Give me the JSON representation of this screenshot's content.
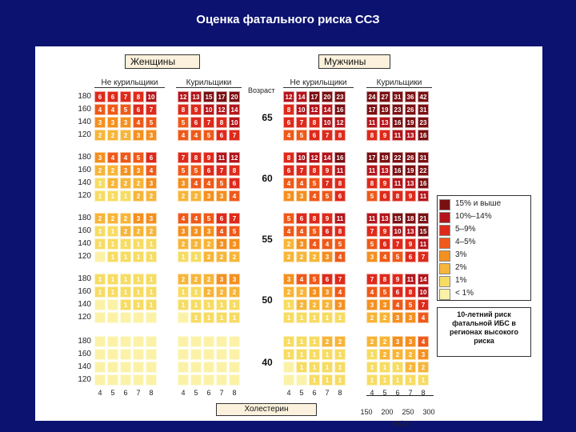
{
  "title": "Оценка фатального риска ССЗ",
  "chart_data": {
    "type": "heatmap",
    "title": "Оценка фатального риска ССЗ",
    "sexes": [
      "Женщины",
      "Мужчины"
    ],
    "smoking_labels": [
      "Не курильщики",
      "Курильщики"
    ],
    "age_axis_label": "Возраст",
    "ages": [
      65,
      60,
      55,
      50,
      40
    ],
    "systolic_bp": [
      180,
      160,
      140,
      120
    ],
    "cholesterol_mmol": [
      "4",
      "5",
      "6",
      "7",
      "8"
    ],
    "cholesterol_label": "Холестерин",
    "cholesterol_mgdl_ticks": [
      "150",
      "200",
      "250",
      "300"
    ],
    "cholesterol_mgdl_unit": "мг/дл",
    "blocks": {
      "65": {
        "women_nonsmokers": [
          [
            6,
            6,
            7,
            8,
            10
          ],
          [
            4,
            4,
            5,
            6,
            7
          ],
          [
            3,
            3,
            3,
            4,
            5
          ],
          [
            2,
            2,
            2,
            3,
            3
          ]
        ],
        "women_smokers": [
          [
            12,
            13,
            15,
            17,
            20
          ],
          [
            8,
            9,
            10,
            12,
            14
          ],
          [
            5,
            6,
            7,
            8,
            10
          ],
          [
            4,
            4,
            5,
            6,
            7
          ]
        ],
        "men_nonsmokers": [
          [
            12,
            14,
            17,
            20,
            23
          ],
          [
            8,
            10,
            12,
            14,
            16
          ],
          [
            6,
            7,
            8,
            10,
            12
          ],
          [
            4,
            5,
            6,
            7,
            8
          ]
        ],
        "men_smokers": [
          [
            24,
            27,
            31,
            36,
            42
          ],
          [
            17,
            19,
            23,
            26,
            31
          ],
          [
            11,
            13,
            16,
            19,
            23
          ],
          [
            8,
            9,
            11,
            13,
            16
          ]
        ]
      },
      "60": {
        "women_nonsmokers": [
          [
            3,
            4,
            4,
            5,
            6
          ],
          [
            2,
            2,
            3,
            3,
            4
          ],
          [
            1,
            2,
            2,
            2,
            3
          ],
          [
            1,
            1,
            1,
            2,
            2
          ]
        ],
        "women_smokers": [
          [
            7,
            8,
            9,
            11,
            12
          ],
          [
            5,
            5,
            6,
            7,
            8
          ],
          [
            3,
            4,
            4,
            5,
            6
          ],
          [
            2,
            2,
            3,
            3,
            4
          ]
        ],
        "men_nonsmokers": [
          [
            8,
            10,
            12,
            14,
            16
          ],
          [
            6,
            7,
            8,
            9,
            11
          ],
          [
            4,
            4,
            5,
            7,
            8
          ],
          [
            3,
            3,
            4,
            5,
            6
          ]
        ],
        "men_smokers": [
          [
            17,
            19,
            22,
            26,
            31
          ],
          [
            11,
            13,
            16,
            19,
            22
          ],
          [
            8,
            9,
            11,
            13,
            16
          ],
          [
            5,
            6,
            8,
            9,
            11
          ]
        ]
      },
      "55": {
        "women_nonsmokers": [
          [
            2,
            2,
            2,
            3,
            3
          ],
          [
            1,
            1,
            2,
            2,
            2
          ],
          [
            1,
            1,
            1,
            1,
            1
          ],
          [
            0,
            1,
            1,
            1,
            1
          ]
        ],
        "women_smokers": [
          [
            4,
            4,
            5,
            6,
            7
          ],
          [
            3,
            3,
            3,
            4,
            5
          ],
          [
            2,
            2,
            2,
            3,
            3
          ],
          [
            1,
            1,
            2,
            2,
            2
          ]
        ],
        "men_nonsmokers": [
          [
            5,
            6,
            8,
            9,
            11
          ],
          [
            4,
            4,
            5,
            6,
            8
          ],
          [
            2,
            3,
            4,
            4,
            5
          ],
          [
            2,
            2,
            2,
            3,
            4
          ]
        ],
        "men_smokers": [
          [
            11,
            13,
            15,
            18,
            21
          ],
          [
            7,
            9,
            10,
            13,
            15
          ],
          [
            5,
            6,
            7,
            9,
            11
          ],
          [
            3,
            4,
            5,
            6,
            7
          ]
        ]
      },
      "50": {
        "women_nonsmokers": [
          [
            1,
            1,
            1,
            1,
            1
          ],
          [
            1,
            1,
            1,
            1,
            1
          ],
          [
            0,
            0,
            1,
            1,
            1
          ],
          [
            0,
            0,
            0,
            0,
            0
          ]
        ],
        "women_smokers": [
          [
            2,
            2,
            2,
            3,
            3
          ],
          [
            1,
            1,
            2,
            2,
            2
          ],
          [
            1,
            1,
            1,
            1,
            1
          ],
          [
            0,
            1,
            1,
            1,
            1
          ]
        ],
        "men_nonsmokers": [
          [
            3,
            4,
            5,
            6,
            7
          ],
          [
            2,
            2,
            3,
            3,
            4
          ],
          [
            1,
            2,
            2,
            2,
            3
          ],
          [
            1,
            1,
            1,
            1,
            1
          ]
        ],
        "men_smokers": [
          [
            7,
            8,
            9,
            11,
            14
          ],
          [
            4,
            5,
            6,
            8,
            10
          ],
          [
            3,
            3,
            4,
            5,
            7
          ],
          [
            2,
            2,
            3,
            3,
            4
          ]
        ]
      },
      "40": {
        "women_nonsmokers": [
          [
            0,
            0,
            0,
            0,
            0
          ],
          [
            0,
            0,
            0,
            0,
            0
          ],
          [
            0,
            0,
            0,
            0,
            0
          ],
          [
            0,
            0,
            0,
            0,
            0
          ]
        ],
        "women_smokers": [
          [
            0,
            0,
            0,
            0,
            0
          ],
          [
            0,
            0,
            0,
            0,
            0
          ],
          [
            0,
            0,
            0,
            0,
            0
          ],
          [
            0,
            0,
            0,
            0,
            0
          ]
        ],
        "men_nonsmokers": [
          [
            1,
            1,
            1,
            2,
            2
          ],
          [
            1,
            1,
            1,
            1,
            1
          ],
          [
            0,
            1,
            1,
            1,
            1
          ],
          [
            0,
            0,
            1,
            1,
            1
          ]
        ],
        "men_smokers": [
          [
            2,
            2,
            3,
            3,
            4
          ],
          [
            1,
            2,
            2,
            2,
            3
          ],
          [
            1,
            1,
            1,
            2,
            2
          ],
          [
            1,
            1,
            1,
            1,
            1
          ]
        ]
      }
    },
    "legend": [
      {
        "label": "15% и выше",
        "color": "#7a0f12"
      },
      {
        "label": "10%–14%",
        "color": "#b3151b"
      },
      {
        "label": "5–9%",
        "color": "#de2a1b"
      },
      {
        "label": "4–5%",
        "color": "#ee5a1a"
      },
      {
        "label": "3%",
        "color": "#f4901f"
      },
      {
        "label": "2%",
        "color": "#f7b539"
      },
      {
        "label": "1%",
        "color": "#f7dc63"
      },
      {
        "label": "< 1%",
        "color": "#fbf2a8"
      }
    ],
    "note": "10-летний риск фатальной ИБС в регионах высокого риска"
  }
}
